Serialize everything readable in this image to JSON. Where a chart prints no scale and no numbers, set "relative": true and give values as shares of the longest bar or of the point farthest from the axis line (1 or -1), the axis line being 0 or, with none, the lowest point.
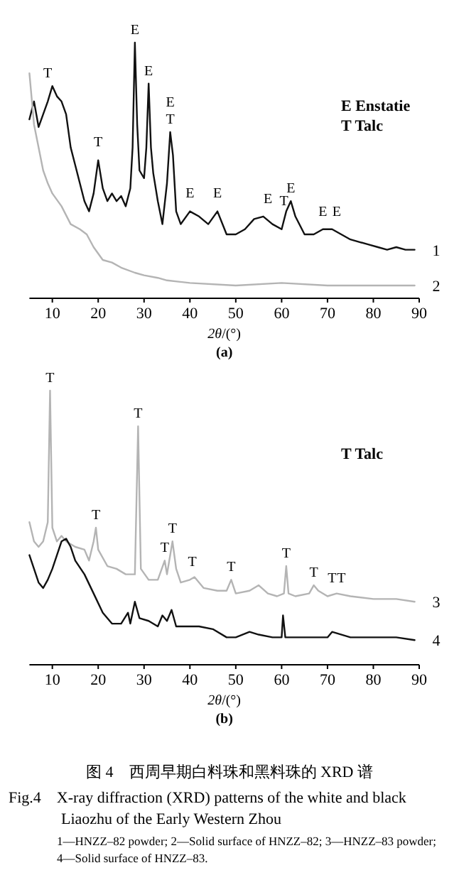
{
  "chart_data": [
    {
      "type": "line",
      "title": "(a)",
      "xlabel": "*2θ*/(°)",
      "relative": true,
      "xlim": [
        5,
        90
      ],
      "xticks": [
        10,
        20,
        30,
        40,
        50,
        60,
        70,
        80,
        90
      ],
      "series": [
        {
          "name": "1",
          "color": "#111111",
          "x": [
            5,
            6,
            7,
            8,
            9,
            10,
            11,
            12,
            13,
            14,
            15,
            16,
            17,
            18,
            19,
            20,
            21,
            22,
            23,
            24,
            25,
            26,
            27,
            27.5,
            28,
            28.5,
            29,
            30,
            30.5,
            31,
            31.5,
            32,
            33,
            34,
            35,
            35.7,
            36.3,
            37,
            38,
            40,
            42,
            44,
            46,
            48,
            50,
            52,
            54,
            56,
            58,
            60,
            61,
            62,
            63,
            65,
            67,
            69,
            71,
            73,
            75,
            77,
            79,
            81,
            83,
            85,
            87,
            89
          ],
          "values": [
            0.7,
            0.77,
            0.67,
            0.72,
            0.77,
            0.83,
            0.79,
            0.77,
            0.72,
            0.59,
            0.52,
            0.45,
            0.38,
            0.34,
            0.41,
            0.54,
            0.43,
            0.38,
            0.41,
            0.38,
            0.4,
            0.36,
            0.43,
            0.59,
            1.0,
            0.68,
            0.5,
            0.47,
            0.59,
            0.84,
            0.59,
            0.49,
            0.38,
            0.29,
            0.45,
            0.65,
            0.56,
            0.34,
            0.29,
            0.34,
            0.32,
            0.29,
            0.34,
            0.25,
            0.25,
            0.27,
            0.31,
            0.32,
            0.29,
            0.27,
            0.34,
            0.38,
            0.32,
            0.25,
            0.25,
            0.27,
            0.27,
            0.25,
            0.23,
            0.22,
            0.21,
            0.2,
            0.19,
            0.2,
            0.19,
            0.19
          ]
        },
        {
          "name": "2",
          "color": "#b4b4b4",
          "x": [
            5,
            6,
            7,
            8,
            9,
            10,
            12,
            14,
            16,
            17.5,
            19,
            21,
            23,
            25,
            28,
            30,
            33,
            35,
            40,
            50,
            60,
            70,
            80,
            89
          ],
          "values": [
            0.88,
            0.68,
            0.59,
            0.5,
            0.45,
            0.41,
            0.36,
            0.29,
            0.27,
            0.25,
            0.2,
            0.15,
            0.14,
            0.12,
            0.1,
            0.09,
            0.08,
            0.07,
            0.06,
            0.05,
            0.06,
            0.05,
            0.05,
            0.05
          ]
        }
      ],
      "annotations": [
        {
          "text": "T",
          "x": 9,
          "y": 0.83
        },
        {
          "text": "T",
          "x": 20,
          "y": 0.56
        },
        {
          "text": "E",
          "x": 28,
          "y": 1.0
        },
        {
          "text": "E",
          "x": 31,
          "y": 0.84
        },
        {
          "text": "T",
          "x": 35.7,
          "y": 0.65
        },
        {
          "text": "E",
          "x": 35.7,
          "y": 0.65
        },
        {
          "text": "E",
          "x": 40,
          "y": 0.36
        },
        {
          "text": "E",
          "x": 46,
          "y": 0.36
        },
        {
          "text": "E",
          "x": 57,
          "y": 0.34
        },
        {
          "text": "T",
          "x": 60.5,
          "y": 0.33
        },
        {
          "text": "E",
          "x": 62,
          "y": 0.38
        },
        {
          "text": "E",
          "x": 69,
          "y": 0.29
        },
        {
          "text": "E",
          "x": 72,
          "y": 0.29
        },
        "E  Enstatie",
        "T  Talc"
      ]
    },
    {
      "type": "line",
      "title": "(b)",
      "xlabel": "*2θ*/(°)",
      "relative": true,
      "xlim": [
        5,
        90
      ],
      "xticks": [
        10,
        20,
        30,
        40,
        50,
        60,
        70,
        80,
        90
      ],
      "series": [
        {
          "name": "3",
          "color": "#b4b4b4",
          "x": [
            5,
            6,
            7,
            8,
            9,
            9.5,
            10,
            11,
            12,
            13,
            15,
            17,
            18,
            19,
            19.5,
            20,
            22,
            24,
            26,
            28,
            28.7,
            29.3,
            31,
            33,
            34.5,
            35,
            36.2,
            37,
            38,
            40,
            41,
            43,
            46,
            48,
            49,
            50,
            53,
            55,
            57,
            59,
            60.5,
            61,
            61.5,
            63,
            66,
            67,
            68,
            70,
            72,
            75,
            80,
            85,
            89
          ],
          "values": [
            0.52,
            0.45,
            0.43,
            0.45,
            0.52,
            1.0,
            0.5,
            0.45,
            0.47,
            0.45,
            0.43,
            0.42,
            0.38,
            0.45,
            0.5,
            0.42,
            0.36,
            0.35,
            0.33,
            0.33,
            0.87,
            0.35,
            0.31,
            0.31,
            0.38,
            0.33,
            0.45,
            0.35,
            0.3,
            0.31,
            0.32,
            0.28,
            0.27,
            0.27,
            0.31,
            0.26,
            0.27,
            0.29,
            0.26,
            0.25,
            0.26,
            0.36,
            0.26,
            0.25,
            0.26,
            0.29,
            0.27,
            0.25,
            0.26,
            0.25,
            0.24,
            0.24,
            0.23
          ]
        },
        {
          "name": "4",
          "color": "#111111",
          "x": [
            5,
            6,
            7,
            8,
            9,
            10,
            11,
            12,
            13,
            14,
            15,
            17,
            19,
            21,
            23,
            25,
            26.5,
            27,
            28,
            29,
            31,
            33,
            34,
            35,
            36,
            37,
            40,
            42,
            45,
            48,
            50,
            53,
            55,
            58,
            60,
            60.3,
            60.8,
            63,
            66,
            70,
            71,
            75,
            80,
            85,
            89
          ],
          "values": [
            0.4,
            0.35,
            0.3,
            0.28,
            0.31,
            0.35,
            0.4,
            0.45,
            0.46,
            0.43,
            0.38,
            0.33,
            0.26,
            0.19,
            0.15,
            0.15,
            0.19,
            0.15,
            0.23,
            0.17,
            0.16,
            0.14,
            0.18,
            0.16,
            0.2,
            0.14,
            0.14,
            0.14,
            0.13,
            0.1,
            0.1,
            0.12,
            0.11,
            0.1,
            0.1,
            0.18,
            0.1,
            0.1,
            0.1,
            0.1,
            0.12,
            0.1,
            0.1,
            0.1,
            0.09
          ]
        }
      ],
      "annotations": [
        {
          "text": "T",
          "x": 9.5,
          "y": 1.0
        },
        {
          "text": "T",
          "x": 19.5,
          "y": 0.5
        },
        {
          "text": "T",
          "x": 28.7,
          "y": 0.87
        },
        {
          "text": "T",
          "x": 34.5,
          "y": 0.38
        },
        {
          "text": "T",
          "x": 36.2,
          "y": 0.45
        },
        {
          "text": "T",
          "x": 40.5,
          "y": 0.33
        },
        {
          "text": "T",
          "x": 49,
          "y": 0.31
        },
        {
          "text": "T",
          "x": 61,
          "y": 0.36
        },
        {
          "text": "T",
          "x": 67,
          "y": 0.29
        },
        {
          "text": "T",
          "x": 71,
          "y": 0.27
        },
        {
          "text": "T",
          "x": 73,
          "y": 0.27
        },
        "T  Talc"
      ]
    },
    {
      "type": "other",
      "title": "图 4　西周早期白料珠和黑料珠的 XRD 谱",
      "subtitle": "Fig.4　X-ray diffraction (XRD) patterns of the white and black Liaozhu of the Early Western Zhou",
      "annotations": [
        "1—HNZZ–82 powder; 2—Solid surface of HNZZ–82; 3—HNZZ–83 powder; 4—Solid surface of HNZZ–83."
      ]
    }
  ]
}
